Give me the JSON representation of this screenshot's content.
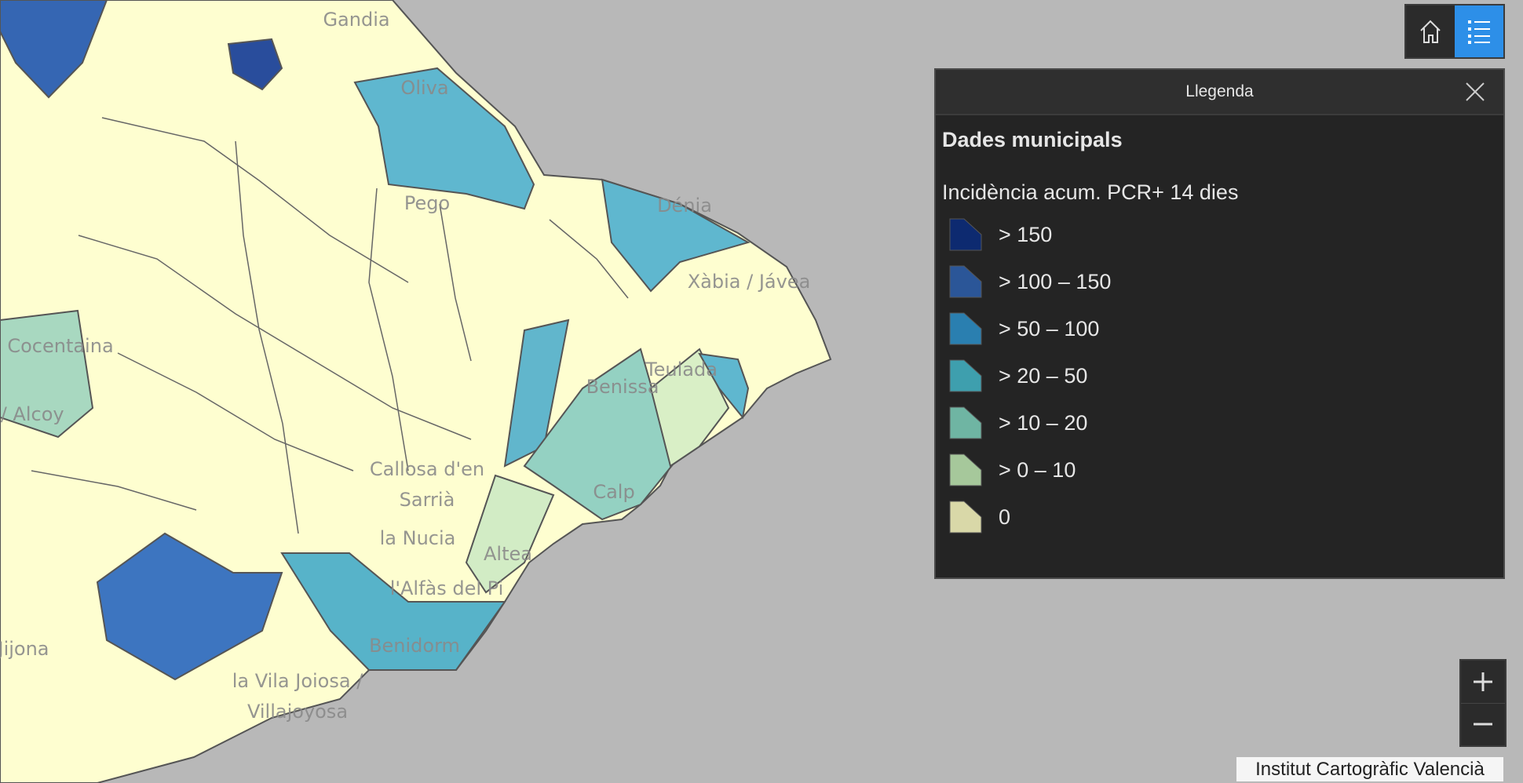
{
  "map": {
    "place_labels": [
      {
        "lines": [
          "Gandia"
        ]
      },
      {
        "lines": [
          "Oliva"
        ]
      },
      {
        "lines": [
          "Pego"
        ]
      },
      {
        "lines": [
          "Dénia"
        ]
      },
      {
        "lines": [
          "Xàbia / Jávea"
        ]
      },
      {
        "lines": [
          "Cocentaina"
        ]
      },
      {
        "lines": [
          "i / Alcoy"
        ]
      },
      {
        "lines": [
          "Teulada"
        ]
      },
      {
        "lines": [
          "Benissa"
        ]
      },
      {
        "lines": [
          "Callosa d'en",
          "Sarrià"
        ]
      },
      {
        "lines": [
          "Calp"
        ]
      },
      {
        "lines": [
          "la Nucia"
        ]
      },
      {
        "lines": [
          "Altea"
        ]
      },
      {
        "lines": [
          "l'Alfàs del Pi"
        ]
      },
      {
        "lines": [
          "Benidorm"
        ]
      },
      {
        "lines": [
          "la Vila Joiosa /",
          "Villajoyosa"
        ]
      },
      {
        "lines": [
          "Jijona"
        ]
      }
    ]
  },
  "legend": {
    "header": "Llegenda",
    "title": "Dades municipals",
    "field": "Incidència acum. PCR+ 14 dies",
    "items": [
      {
        "label": "> 150",
        "color": "#0d2a70"
      },
      {
        "label": "> 100 – 150",
        "color": "#2b5698"
      },
      {
        "label": "> 50 – 100",
        "color": "#2a7fb0"
      },
      {
        "label": "> 20 – 50",
        "color": "#3e9fae"
      },
      {
        "label": "> 10 – 20",
        "color": "#6fb5a3"
      },
      {
        "label": "> 0 – 10",
        "color": "#a6c89b"
      },
      {
        "label": "0",
        "color": "#d9d8a8"
      }
    ]
  },
  "attribution": "Institut Cartogràfic Valencià"
}
